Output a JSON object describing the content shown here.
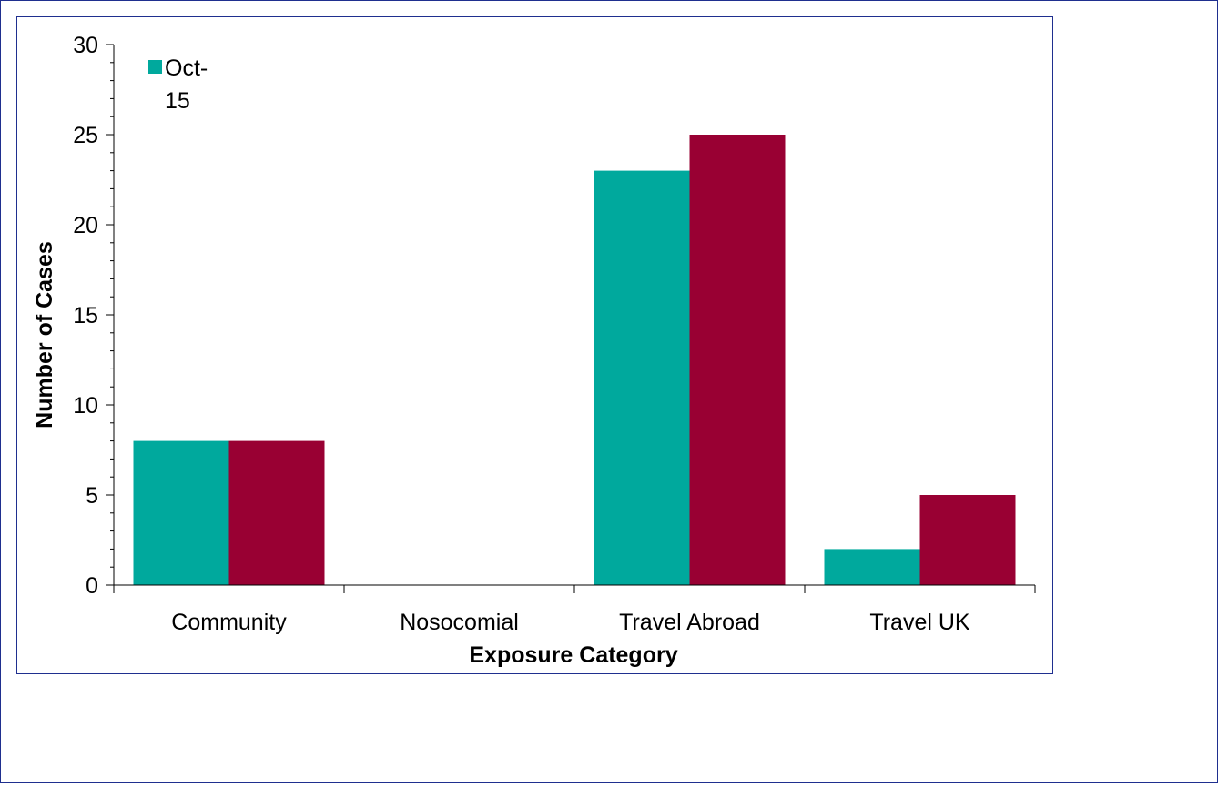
{
  "chart_data": {
    "type": "bar",
    "title": "",
    "xlabel": "Exposure Category",
    "ylabel": "Number of Cases",
    "categories": [
      "Community",
      "Nosocomial",
      "Travel Abroad",
      "Travel UK"
    ],
    "series": [
      {
        "name": "Oct-15",
        "values": [
          8,
          0,
          23,
          2
        ],
        "color": "#00a99d"
      },
      {
        "name": "",
        "values": [
          8,
          0,
          25,
          5
        ],
        "color": "#990033"
      }
    ],
    "ylim": [
      0,
      30
    ],
    "yticks": [
      0,
      5,
      10,
      15,
      20,
      25,
      30
    ],
    "ytick_labels": [
      "0",
      "5",
      "10",
      "15",
      "20",
      "25",
      "30"
    ],
    "grid": false,
    "legend_position": "top-left",
    "legend_lines": [
      "Oct-",
      "15"
    ]
  },
  "colors": {
    "frame": "#1f2f8f",
    "axis": "#000000"
  }
}
